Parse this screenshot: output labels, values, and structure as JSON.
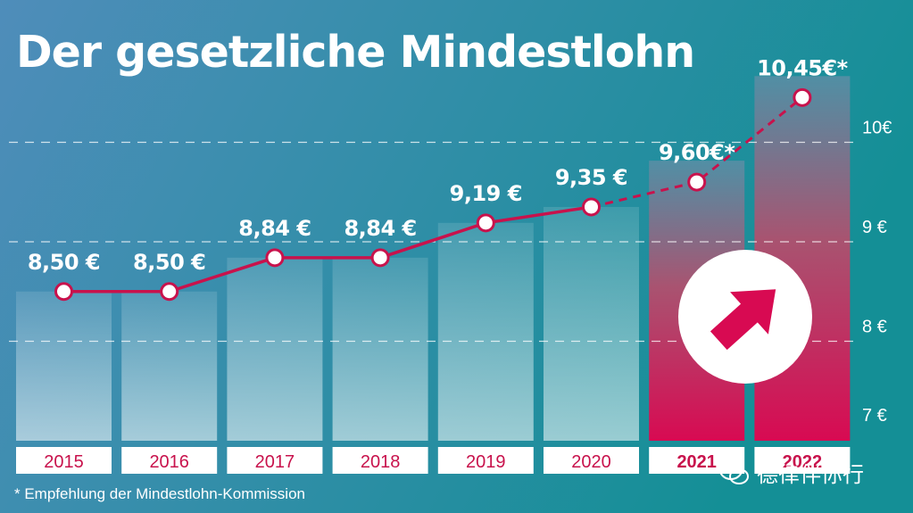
{
  "title": "Der gesetzliche Mindestlohn",
  "footnote": "* Empfehlung der Mindestlohn-Kommission",
  "watermark": "德律伴你行",
  "colors": {
    "background_left": "#4f8dba",
    "background_right": "#148f96",
    "line": "#c8124c",
    "accent": "#d80a52",
    "label_text": "#ffffff"
  },
  "chart_data": {
    "type": "bar",
    "categories": [
      "2015",
      "2016",
      "2017",
      "2018",
      "2019",
      "2020",
      "2021",
      "2022"
    ],
    "values": [
      8.5,
      8.5,
      8.84,
      8.84,
      9.19,
      9.35,
      9.6,
      10.45
    ],
    "value_labels": [
      "8,50 €",
      "8,50 €",
      "8,84 €",
      "8,84 €",
      "9,19 €",
      "9,35 €",
      "9,60€*",
      "10,45€*"
    ],
    "highlighted_categories": [
      "2021",
      "2022"
    ],
    "projected_categories": [
      "2021",
      "2022"
    ],
    "line_overlay": true,
    "ylim": [
      7,
      10.45
    ],
    "yticks": [
      {
        "value": 7,
        "label": "7 €"
      },
      {
        "value": 8,
        "label": "8 €"
      },
      {
        "value": 9,
        "label": "9 €"
      },
      {
        "value": 10,
        "label": "10€"
      }
    ],
    "grid": "dashed",
    "icon": "up-arrow-icon"
  }
}
